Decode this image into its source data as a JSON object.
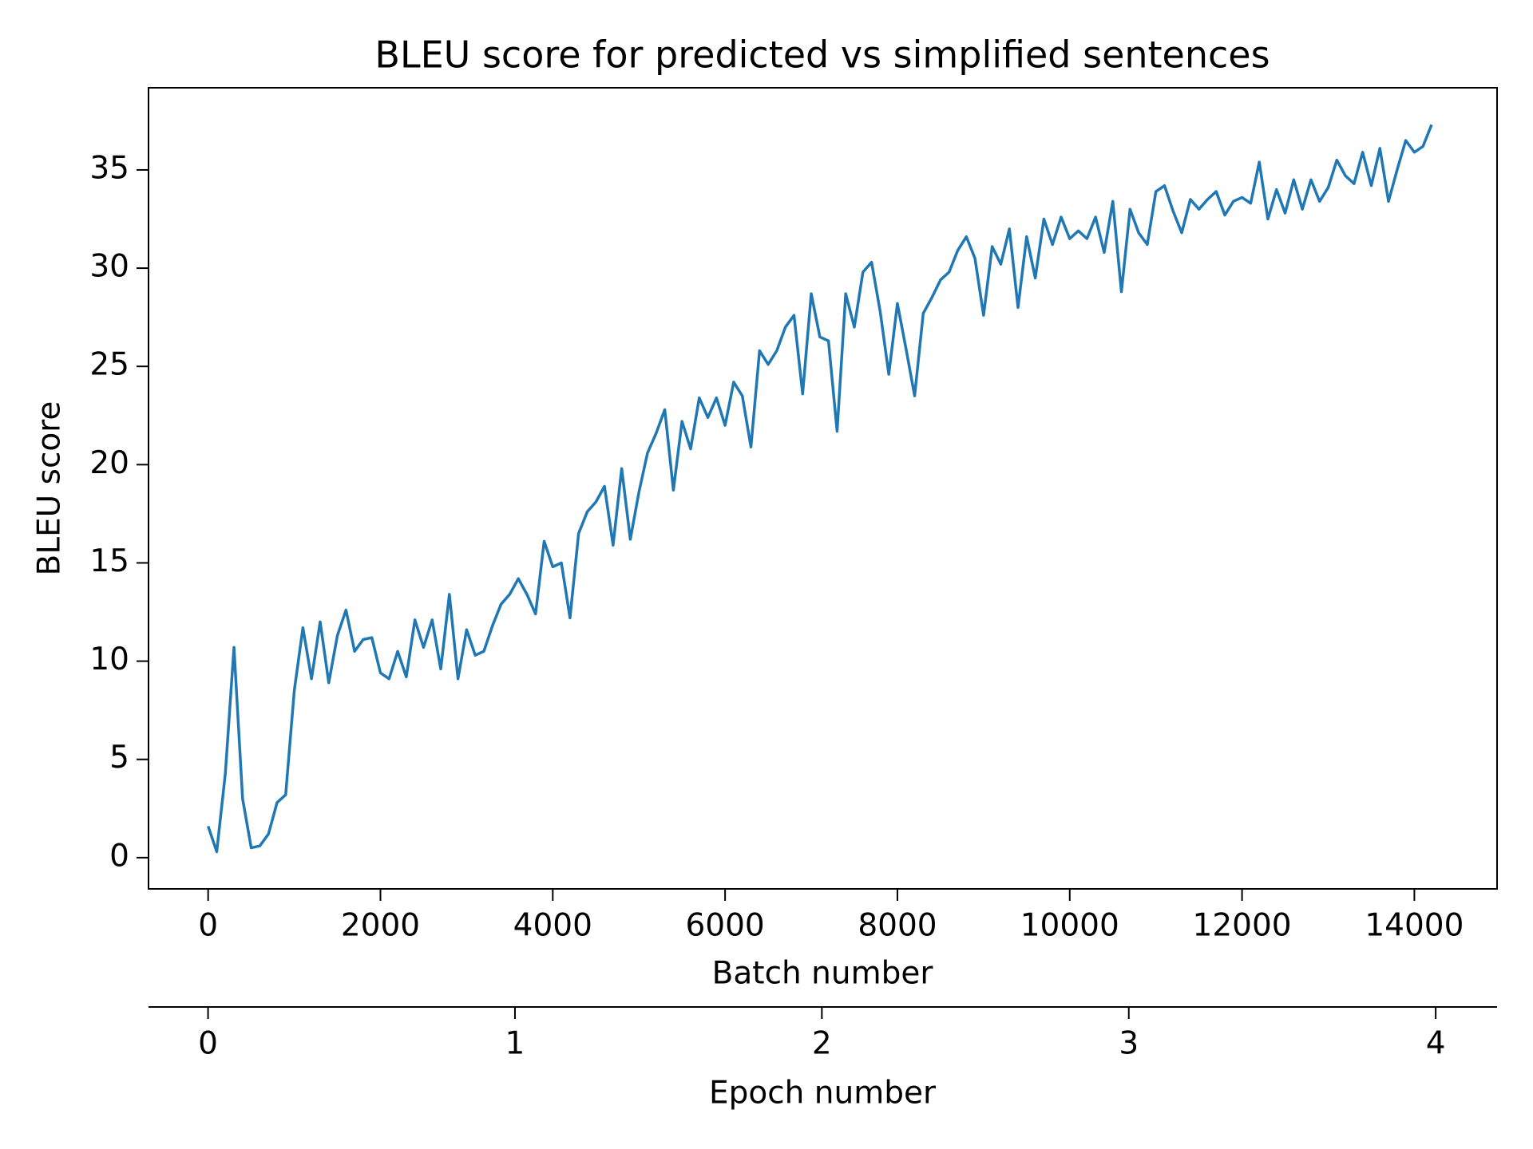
{
  "chart_data": {
    "type": "line",
    "title": "BLEU score for predicted vs simplified sentences",
    "xlabel": "Batch number",
    "ylabel": "BLEU score",
    "x2label": "Epoch number",
    "x": [
      0,
      100,
      200,
      300,
      400,
      500,
      600,
      700,
      800,
      900,
      1000,
      1100,
      1200,
      1300,
      1400,
      1500,
      1600,
      1700,
      1800,
      1900,
      2000,
      2100,
      2200,
      2300,
      2400,
      2500,
      2600,
      2700,
      2800,
      2900,
      3000,
      3100,
      3200,
      3300,
      3400,
      3500,
      3600,
      3700,
      3800,
      3900,
      4000,
      4100,
      4200,
      4300,
      4400,
      4500,
      4600,
      4700,
      4800,
      4900,
      5000,
      5100,
      5200,
      5300,
      5400,
      5500,
      5600,
      5700,
      5800,
      5900,
      6000,
      6100,
      6200,
      6300,
      6400,
      6500,
      6600,
      6700,
      6800,
      6900,
      7000,
      7100,
      7200,
      7300,
      7400,
      7500,
      7600,
      7700,
      7800,
      7900,
      8000,
      8100,
      8200,
      8300,
      8400,
      8500,
      8600,
      8700,
      8800,
      8900,
      9000,
      9100,
      9200,
      9300,
      9400,
      9500,
      9600,
      9700,
      9800,
      9900,
      10000,
      10100,
      10200,
      10300,
      10400,
      10500,
      10600,
      10700,
      10800,
      10900,
      11000,
      11100,
      11200,
      11300,
      11400,
      11500,
      11600,
      11700,
      11800,
      11900,
      12000,
      12100,
      12200,
      12300,
      12400,
      12500,
      12600,
      12700,
      12800,
      12900,
      13000,
      13100,
      13200,
      13300,
      13400,
      13500,
      13600,
      13700,
      13800,
      13900,
      14000,
      14100,
      14200
    ],
    "series": [
      {
        "name": "BLEU score",
        "color": "#1f77b4",
        "values": [
          1.6,
          0.3,
          4.3,
          10.7,
          3.0,
          0.5,
          0.6,
          1.2,
          2.8,
          3.2,
          8.5,
          11.7,
          9.1,
          12.0,
          8.9,
          11.3,
          12.6,
          10.5,
          11.1,
          11.2,
          9.4,
          9.1,
          10.5,
          9.2,
          12.1,
          10.7,
          12.1,
          9.6,
          13.4,
          9.1,
          11.6,
          10.3,
          10.5,
          11.8,
          12.9,
          13.4,
          14.2,
          13.4,
          12.4,
          16.1,
          14.8,
          15.0,
          12.2,
          16.5,
          17.6,
          18.1,
          18.9,
          15.9,
          19.8,
          16.2,
          18.6,
          20.6,
          21.6,
          22.8,
          18.7,
          22.2,
          20.8,
          23.4,
          22.4,
          23.4,
          22.0,
          24.2,
          23.5,
          20.9,
          25.8,
          25.1,
          25.8,
          27.0,
          27.6,
          23.6,
          28.7,
          26.5,
          26.3,
          21.7,
          28.7,
          27.0,
          29.8,
          30.3,
          27.8,
          24.6,
          28.2,
          25.9,
          23.5,
          27.7,
          28.5,
          29.4,
          29.8,
          30.9,
          31.6,
          30.5,
          27.6,
          31.1,
          30.2,
          32.0,
          28.0,
          31.6,
          29.5,
          32.5,
          31.2,
          32.6,
          31.5,
          31.9,
          31.5,
          32.6,
          30.8,
          33.4,
          28.8,
          33.0,
          31.8,
          31.2,
          33.9,
          34.2,
          32.9,
          31.8,
          33.5,
          33.0,
          33.5,
          33.9,
          32.7,
          33.4,
          33.6,
          33.3,
          35.4,
          32.5,
          34.0,
          32.8,
          34.5,
          33.0,
          34.5,
          33.4,
          34.1,
          35.5,
          34.7,
          34.3,
          35.9,
          34.2,
          36.1,
          33.4,
          35.0,
          36.5,
          35.9,
          36.2,
          37.3
        ]
      }
    ],
    "xlim": [
      -692,
      14960
    ],
    "xticks": [
      0,
      2000,
      4000,
      6000,
      8000,
      10000,
      12000,
      14000
    ],
    "ylim": [
      -1.59,
      39.18
    ],
    "yticks": [
      0,
      5,
      10,
      15,
      20,
      25,
      30,
      35
    ],
    "x2lim": [
      -0.194,
      4.2
    ],
    "x2ticks": [
      0,
      1,
      2,
      3,
      4
    ],
    "grid": false
  }
}
